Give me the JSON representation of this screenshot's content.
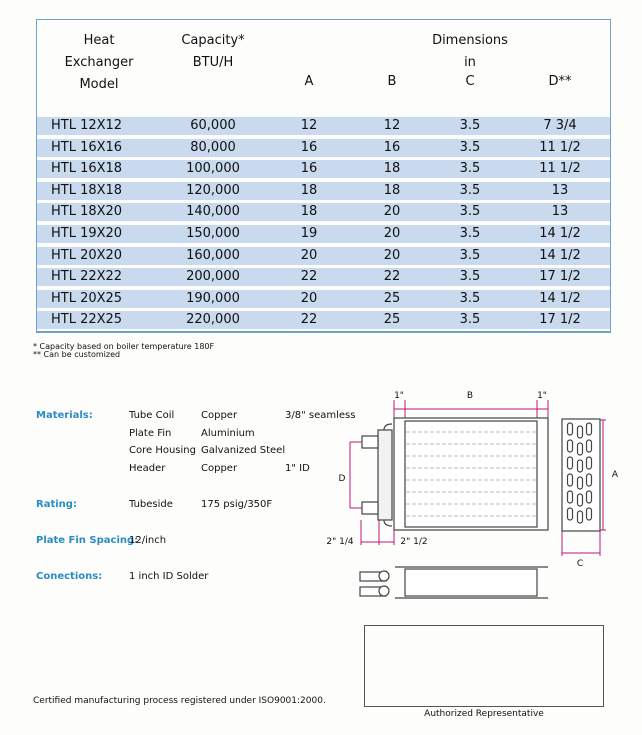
{
  "table": {
    "headers": {
      "model": [
        "Heat",
        "Exchanger",
        "Model"
      ],
      "capacity": [
        "Capacity*",
        "BTU/H"
      ],
      "dimensions": [
        "Dimensions",
        "in"
      ],
      "cols": [
        "A",
        "B",
        "C",
        "D**"
      ]
    },
    "rows": [
      [
        "HTL 12X12",
        "60,000",
        "12",
        "12",
        "3.5",
        "7 3/4"
      ],
      [
        "HTL 16X16",
        "80,000",
        "16",
        "16",
        "3.5",
        "11 1/2"
      ],
      [
        "HTL 16X18",
        "100,000",
        "16",
        "18",
        "3.5",
        "11 1/2"
      ],
      [
        "HTL 18X18",
        "120,000",
        "18",
        "18",
        "3.5",
        "13"
      ],
      [
        "HTL 18X20",
        "140,000",
        "18",
        "20",
        "3.5",
        "13"
      ],
      [
        "HTL 19X20",
        "150,000",
        "19",
        "20",
        "3.5",
        "14 1/2"
      ],
      [
        "HTL 20X20",
        "160,000",
        "20",
        "20",
        "3.5",
        "14 1/2"
      ],
      [
        "HTL 22X22",
        "200,000",
        "22",
        "22",
        "3.5",
        "17 1/2"
      ],
      [
        "HTL 20X25",
        "190,000",
        "20",
        "25",
        "3.5",
        "14 1/2"
      ],
      [
        "HTL 22X25",
        "220,000",
        "22",
        "25",
        "3.5",
        "17 1/2"
      ]
    ],
    "row_color": "#c9daee",
    "border_color": "#6ea3c9"
  },
  "footnotes": [
    "* Capacity based on boiler temperature 180F",
    "** Can be customized"
  ],
  "specs": {
    "label_color": "#2a8cc4",
    "materials_label": "Materials:",
    "materials": [
      [
        "Tube Coil",
        "Copper",
        "3/8\" seamless"
      ],
      [
        "Plate Fin",
        "Aluminium",
        ""
      ],
      [
        "Core Housing",
        "Galvanized Steel",
        ""
      ],
      [
        "Header",
        "Copper",
        "1\" ID"
      ]
    ],
    "rating_label": "Rating:",
    "rating": [
      "Tubeside",
      "175 psig/350F"
    ],
    "fin_label": "Plate Fin Spacing:",
    "fin_value": "12/inch",
    "conn_label": "Conections:",
    "conn_value": "1 inch ID Solder"
  },
  "diagram": {
    "dim_left": "1\"",
    "dim_b": "B",
    "dim_right": "1\"",
    "dim_d": "D",
    "dim_a": "A",
    "dim_c": "C",
    "dim_header": "2\" 1/4",
    "dim_header2": "2\" 1/2",
    "dim_color": "#c0177a"
  },
  "certification": "Certified manufacturing process registered under ISO9001:2000.",
  "signature_label": "Authorized Representative"
}
